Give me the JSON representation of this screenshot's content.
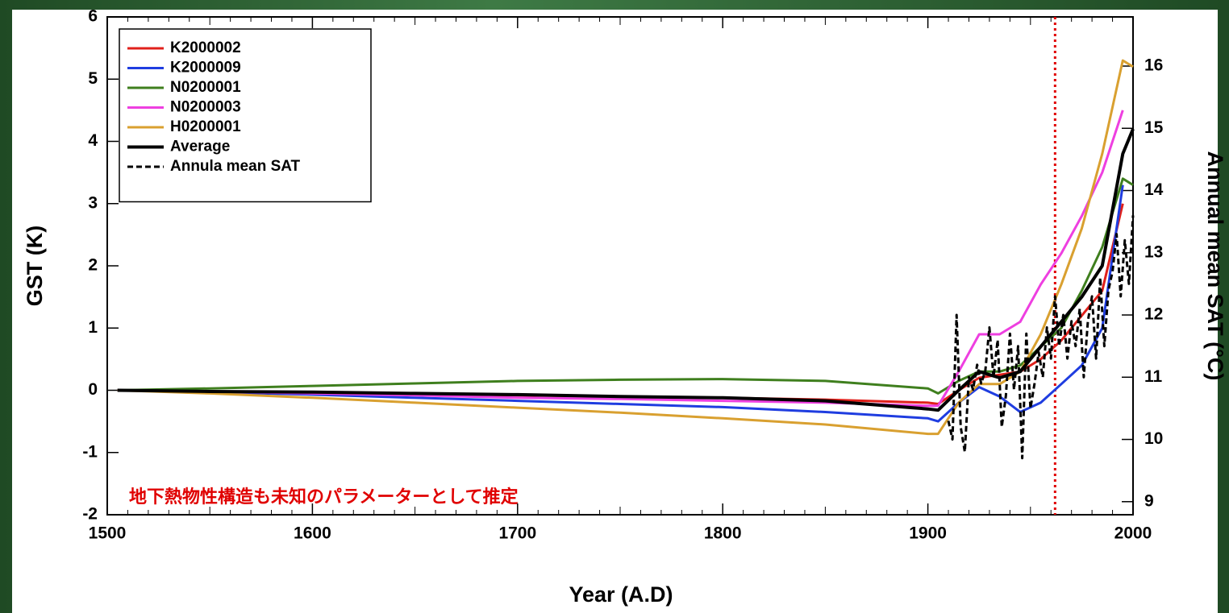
{
  "chart_data": {
    "type": "line",
    "xlabel": "Year (A.D)",
    "ylabel": "GST (K)",
    "y2label": "Annual mean SAT (°C)",
    "annotation": "地下熱物性構造も未知のパラメーターとして推定",
    "legend": "upper left",
    "xlim": [
      1500,
      2000
    ],
    "xticks": [
      1500,
      1600,
      1700,
      1800,
      1900,
      2000
    ],
    "ylim": [
      -2,
      6
    ],
    "yticks": [
      -2,
      -1,
      0,
      1,
      2,
      3,
      4,
      5,
      6
    ],
    "y2lim": [
      8.79,
      16.79
    ],
    "y2ticks": [
      9,
      10,
      11,
      12,
      13,
      14,
      15,
      16
    ],
    "vline_x": 1962,
    "vline_color": "#e00000",
    "x": [
      1505,
      1550,
      1600,
      1650,
      1700,
      1750,
      1800,
      1850,
      1900,
      1905,
      1915,
      1925,
      1935,
      1945,
      1955,
      1965,
      1975,
      1985,
      1995,
      2000
    ],
    "series": [
      {
        "name": "K2000002",
        "color": "#e0201b",
        "values": [
          0,
          -0.02,
          -0.05,
          -0.07,
          -0.08,
          -0.1,
          -0.12,
          -0.15,
          -0.2,
          -0.22,
          0.0,
          0.2,
          0.25,
          0.3,
          0.5,
          0.8,
          1.2,
          1.6,
          3.0,
          null
        ]
      },
      {
        "name": "K2000009",
        "color": "#1f3de0",
        "values": [
          0,
          -0.03,
          -0.07,
          -0.12,
          -0.17,
          -0.22,
          -0.27,
          -0.35,
          -0.45,
          -0.5,
          -0.2,
          0.05,
          -0.1,
          -0.35,
          -0.2,
          0.1,
          0.4,
          1.0,
          3.3,
          null
        ]
      },
      {
        "name": "N0200001",
        "color": "#3f7f1e",
        "values": [
          0,
          0.03,
          0.07,
          0.11,
          0.15,
          0.17,
          0.18,
          0.15,
          0.03,
          -0.05,
          0.15,
          0.3,
          0.3,
          0.4,
          0.7,
          1.0,
          1.6,
          2.3,
          3.4,
          3.3
        ]
      },
      {
        "name": "N0200003",
        "color": "#ee3fe0",
        "values": [
          0,
          -0.02,
          -0.05,
          -0.08,
          -0.12,
          -0.14,
          -0.17,
          -0.2,
          -0.25,
          -0.25,
          0.3,
          0.9,
          0.9,
          1.1,
          1.7,
          2.2,
          2.8,
          3.5,
          4.5,
          null
        ]
      },
      {
        "name": "H0200001",
        "color": "#d9a030",
        "values": [
          0,
          -0.05,
          -0.12,
          -0.2,
          -0.28,
          -0.36,
          -0.45,
          -0.55,
          -0.7,
          -0.7,
          -0.2,
          0.1,
          0.1,
          0.3,
          0.9,
          1.7,
          2.6,
          3.8,
          5.3,
          5.2
        ]
      },
      {
        "name": "Average",
        "color": "#000000",
        "width": 4,
        "values": [
          0,
          -0.02,
          -0.03,
          -0.05,
          -0.07,
          -0.1,
          -0.12,
          -0.17,
          -0.3,
          -0.32,
          0.0,
          0.3,
          0.2,
          0.3,
          0.7,
          1.1,
          1.5,
          2.0,
          3.8,
          4.2
        ]
      },
      {
        "name": "Annula mean SAT",
        "color": "#000000",
        "dashed": true,
        "axis": "y2",
        "x": [
          1910,
          1912,
          1914,
          1916,
          1918,
          1920,
          1922,
          1924,
          1926,
          1928,
          1930,
          1932,
          1934,
          1936,
          1938,
          1940,
          1942,
          1944,
          1946,
          1948,
          1950,
          1952,
          1954,
          1956,
          1958,
          1960,
          1962,
          1964,
          1966,
          1968,
          1970,
          1972,
          1974,
          1976,
          1978,
          1980,
          1982,
          1984,
          1986,
          1988,
          1990,
          1992,
          1994,
          1996,
          1998,
          2000
        ],
        "values": [
          10.3,
          10.0,
          12.0,
          10.2,
          9.8,
          11.0,
          10.8,
          11.2,
          10.9,
          11.1,
          11.8,
          11.0,
          11.6,
          10.2,
          10.7,
          11.7,
          10.8,
          11.5,
          9.7,
          11.7,
          10.5,
          10.9,
          11.4,
          11.0,
          11.8,
          11.3,
          12.3,
          11.5,
          12.0,
          11.3,
          11.9,
          11.5,
          12.1,
          11.0,
          11.9,
          12.3,
          11.3,
          12.6,
          11.5,
          12.4,
          12.7,
          13.3,
          12.3,
          13.2,
          12.5,
          13.6
        ]
      }
    ]
  }
}
